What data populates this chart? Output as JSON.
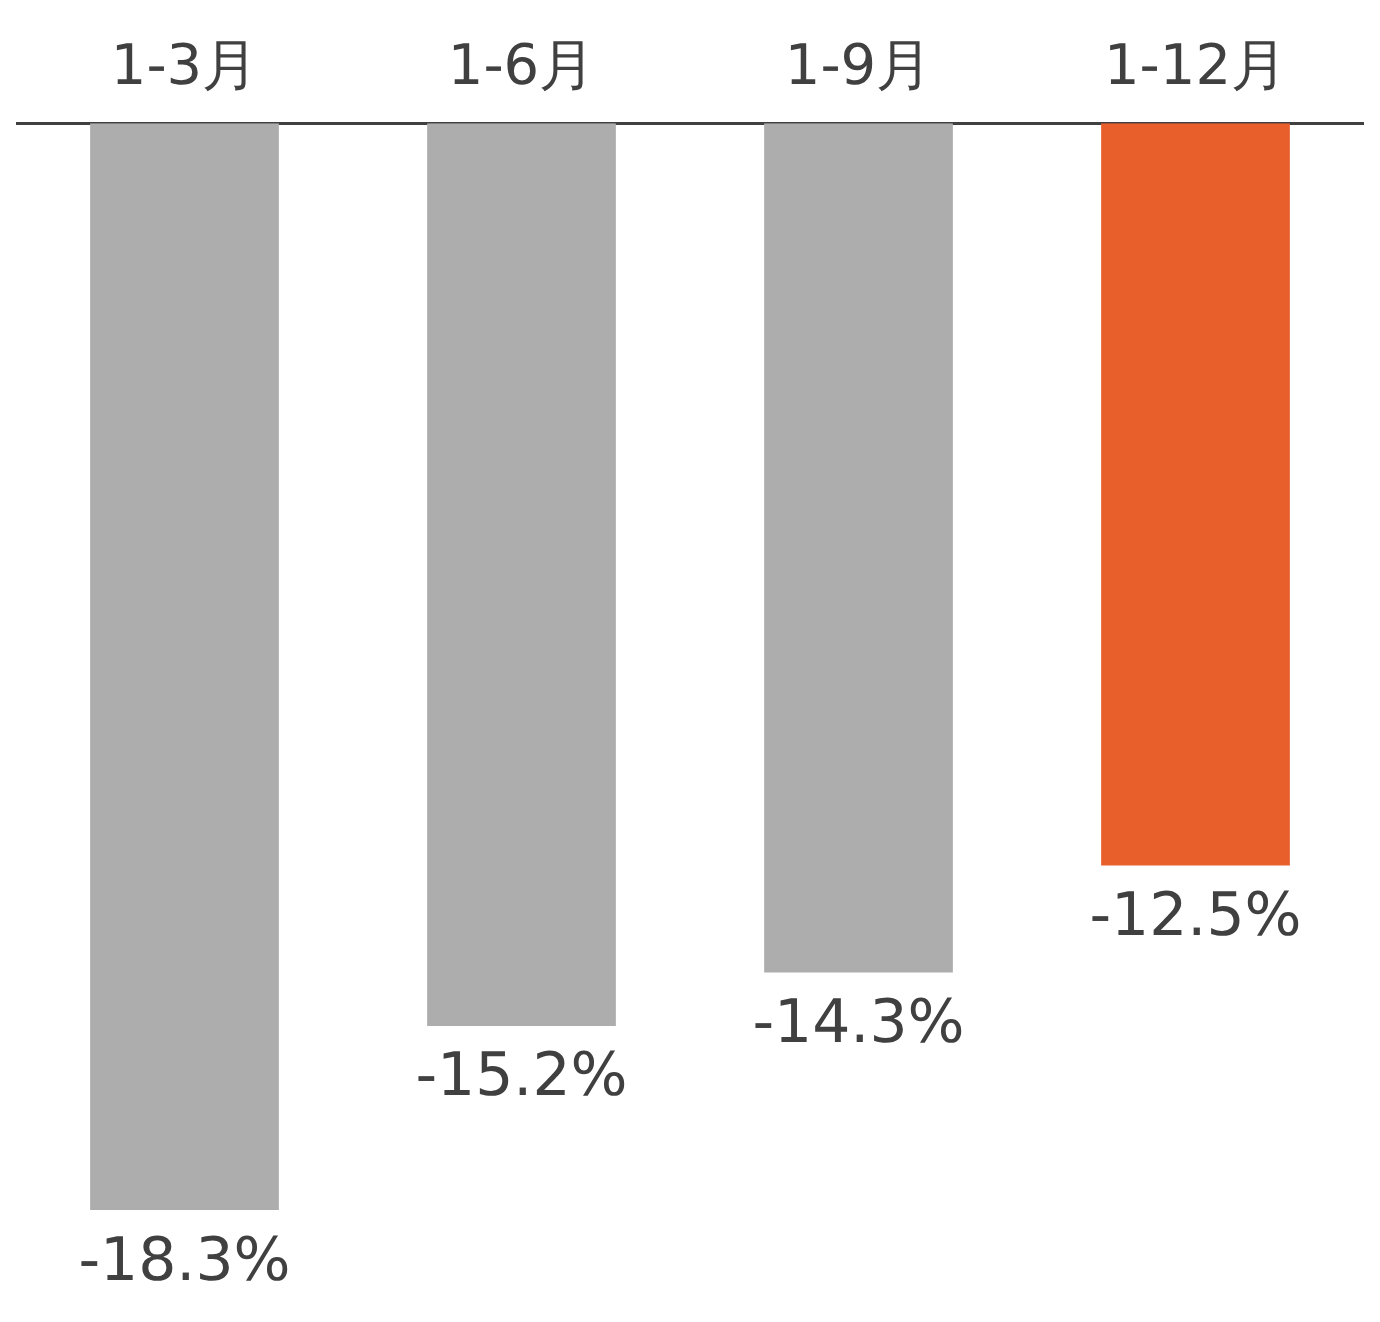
{
  "chart_data": {
    "type": "bar",
    "categories": [
      "1-3月",
      "1-6月",
      "1-9月",
      "1-12月"
    ],
    "values": [
      -18.3,
      -15.2,
      -14.3,
      -12.5
    ],
    "colors": [
      "#adadad",
      "#adadad",
      "#adadad",
      "#e95f2c"
    ],
    "value_labels": [
      "-18.3%",
      "-15.2%",
      "-14.3%",
      "-12.5%"
    ],
    "legend": false,
    "grid": false
  }
}
